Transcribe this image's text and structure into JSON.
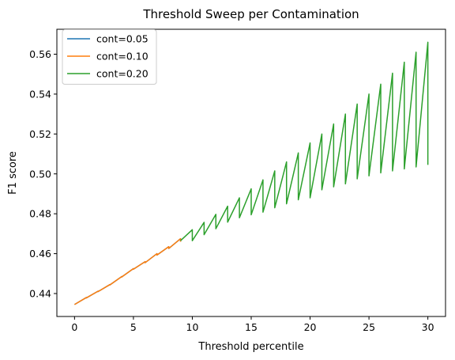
{
  "chart_data": {
    "type": "line",
    "title": "Threshold Sweep per Contamination",
    "xlabel": "Threshold percentile",
    "ylabel": "F1 score",
    "xlim": [
      -1.5,
      31.5
    ],
    "ylim": [
      0.4285,
      0.5725
    ],
    "xticks": [
      0,
      5,
      10,
      15,
      20,
      25,
      30
    ],
    "yticks": [
      0.44,
      0.46,
      0.48,
      0.5,
      0.52,
      0.54,
      0.56
    ],
    "ytick_labels": [
      "0.44",
      "0.46",
      "0.48",
      "0.50",
      "0.52",
      "0.54",
      "0.56"
    ],
    "grid": false,
    "legend_position": "top-left",
    "series": [
      {
        "name": "cont=0.05",
        "color": "#1f77b4",
        "x": [
          0,
          1,
          1,
          2,
          2,
          3,
          3,
          4,
          4,
          5,
          5,
          6,
          6,
          7,
          7,
          8,
          8,
          9,
          9
        ],
        "y": [
          0.4345,
          0.438,
          0.4378,
          0.4412,
          0.441,
          0.4445,
          0.4443,
          0.4485,
          0.4483,
          0.4525,
          0.4522,
          0.456,
          0.4555,
          0.46,
          0.4593,
          0.4635,
          0.4626,
          0.4675,
          0.466
        ]
      },
      {
        "name": "cont=0.10",
        "color": "#ff7f0e",
        "x": [
          0,
          1,
          1,
          2,
          2,
          3,
          3,
          4,
          4,
          5,
          5,
          6,
          6,
          7,
          7,
          8,
          8,
          9,
          9
        ],
        "y": [
          0.4345,
          0.438,
          0.4378,
          0.4412,
          0.441,
          0.4445,
          0.4443,
          0.4485,
          0.4483,
          0.4525,
          0.4522,
          0.456,
          0.4555,
          0.46,
          0.4593,
          0.4635,
          0.4626,
          0.4675,
          0.466
        ]
      },
      {
        "name": "cont=0.20",
        "color": "#2ca02c",
        "x": [
          9,
          10,
          10,
          11,
          11,
          12,
          12,
          13,
          13,
          14,
          14,
          15,
          15,
          16,
          16,
          17,
          17,
          18,
          18,
          19,
          19,
          20,
          20,
          21,
          21,
          22,
          22,
          23,
          23,
          24,
          24,
          25,
          25,
          26,
          26,
          27,
          27,
          28,
          28,
          29,
          29,
          30,
          30
        ],
        "y": [
          0.4665,
          0.472,
          0.4665,
          0.4757,
          0.4695,
          0.4797,
          0.4725,
          0.4838,
          0.4758,
          0.488,
          0.478,
          0.4925,
          0.4795,
          0.497,
          0.4808,
          0.5015,
          0.483,
          0.506,
          0.485,
          0.5105,
          0.487,
          0.5155,
          0.488,
          0.52,
          0.492,
          0.525,
          0.4935,
          0.53,
          0.495,
          0.535,
          0.4975,
          0.54,
          0.499,
          0.545,
          0.5005,
          0.5505,
          0.5015,
          0.556,
          0.5025,
          0.561,
          0.5035,
          0.566,
          0.5045
        ]
      }
    ]
  }
}
